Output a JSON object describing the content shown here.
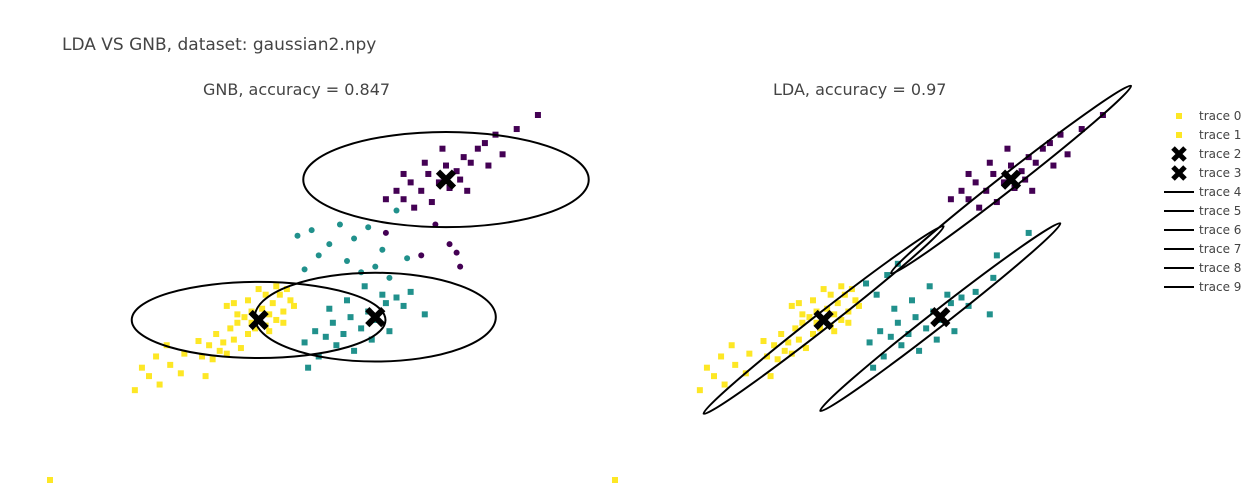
{
  "title": "LDA VS GNB, dataset: gaussian2.npy",
  "colors": {
    "class0": "#fde725",
    "class1": "#21918c",
    "class2": "#440154",
    "marker": "#000000",
    "ellipse": "#000000"
  },
  "legend": [
    {
      "label": "trace 0",
      "symbol": "square"
    },
    {
      "label": "trace 1",
      "symbol": "square"
    },
    {
      "label": "trace 2",
      "symbol": "x"
    },
    {
      "label": "trace 3",
      "symbol": "x"
    },
    {
      "label": "trace 4",
      "symbol": "line"
    },
    {
      "label": "trace 5",
      "symbol": "line"
    },
    {
      "label": "trace 6",
      "symbol": "line"
    },
    {
      "label": "trace 7",
      "symbol": "line"
    },
    {
      "label": "trace 8",
      "symbol": "line"
    },
    {
      "label": "trace 9",
      "symbol": "line"
    }
  ],
  "chart_data": [
    {
      "type": "scatter",
      "title": "GNB, accuracy = 0.847",
      "axes_visible": false,
      "grid": false,
      "xlim": [
        -4,
        10
      ],
      "ylim": [
        -4,
        9
      ],
      "series": [
        {
          "class": 0,
          "marker": "square",
          "points": [
            [
              0.2,
              0.95
            ],
            [
              0.3,
              0.4
            ],
            [
              0.5,
              0.8
            ],
            [
              0.6,
              0.3
            ],
            [
              0.7,
              1.2
            ],
            [
              0.8,
              0.6
            ],
            [
              0.9,
              0.9
            ],
            [
              1.0,
              0.5
            ],
            [
              1.1,
              1.4
            ],
            [
              1.2,
              1.0
            ],
            [
              1.3,
              1.6
            ],
            [
              1.4,
              0.7
            ],
            [
              1.5,
              1.8
            ],
            [
              1.6,
              1.2
            ],
            [
              1.7,
              2.0
            ],
            [
              1.8,
              1.4
            ],
            [
              1.9,
              1.7
            ],
            [
              2.0,
              2.1
            ],
            [
              2.1,
              1.5
            ],
            [
              2.2,
              1.9
            ],
            [
              2.3,
              2.3
            ],
            [
              2.4,
              1.7
            ],
            [
              2.5,
              2.6
            ],
            [
              2.6,
              2.0
            ],
            [
              2.7,
              2.8
            ],
            [
              2.8,
              2.4
            ],
            [
              2.9,
              2.2
            ],
            [
              1.0,
              2.2
            ],
            [
              1.3,
              1.9
            ],
            [
              1.7,
              1.6
            ],
            [
              2.1,
              2.6
            ],
            [
              2.4,
              2.9
            ],
            [
              1.2,
              2.3
            ],
            [
              1.6,
              2.4
            ],
            [
              1.9,
              2.8
            ],
            [
              2.2,
              1.3
            ],
            [
              2.6,
              1.6
            ],
            [
              -1.6,
              -0.8
            ],
            [
              -1.2,
              -0.3
            ],
            [
              -0.9,
              -0.6
            ],
            [
              -0.6,
              0.1
            ],
            [
              -0.3,
              -0.2
            ],
            [
              -1.4,
              0.0
            ],
            [
              -1.0,
              0.4
            ],
            [
              -0.2,
              0.5
            ],
            [
              0.4,
              -0.3
            ],
            [
              -0.7,
              0.8
            ]
          ]
        },
        {
          "class": 1,
          "marker": "square",
          "points": [
            [
              3.2,
              0.9
            ],
            [
              3.5,
              1.3
            ],
            [
              3.8,
              1.1
            ],
            [
              4.0,
              1.6
            ],
            [
              4.3,
              1.2
            ],
            [
              4.5,
              1.8
            ],
            [
              4.8,
              1.4
            ],
            [
              5.0,
              2.0
            ],
            [
              5.2,
              1.7
            ],
            [
              5.5,
              2.3
            ],
            [
              5.8,
              2.5
            ],
            [
              6.0,
              2.2
            ],
            [
              6.2,
              2.7
            ],
            [
              3.6,
              0.4
            ],
            [
              4.1,
              0.8
            ],
            [
              4.6,
              0.6
            ],
            [
              5.1,
              1.0
            ],
            [
              5.6,
              1.3
            ],
            [
              3.9,
              2.1
            ],
            [
              4.4,
              2.4
            ],
            [
              4.9,
              2.9
            ],
            [
              5.4,
              2.6
            ],
            [
              6.6,
              1.9
            ],
            [
              3.3,
              0.0
            ]
          ]
        },
        {
          "class": 1,
          "marker": "circle",
          "points": [
            [
              3.0,
              4.7
            ],
            [
              3.4,
              4.9
            ],
            [
              3.9,
              4.4
            ],
            [
              4.2,
              5.1
            ],
            [
              4.6,
              4.6
            ],
            [
              5.0,
              5.0
            ],
            [
              5.4,
              4.2
            ],
            [
              5.8,
              5.6
            ],
            [
              3.6,
              4.0
            ],
            [
              4.4,
              3.8
            ],
            [
              5.2,
              3.6
            ],
            [
              6.1,
              3.9
            ],
            [
              4.8,
              3.4
            ],
            [
              3.2,
              3.5
            ],
            [
              5.6,
              3.2
            ]
          ]
        },
        {
          "class": 2,
          "marker": "square",
          "points": [
            [
              5.5,
              6.0
            ],
            [
              5.8,
              6.3
            ],
            [
              6.0,
              6.0
            ],
            [
              6.2,
              6.6
            ],
            [
              6.5,
              6.3
            ],
            [
              6.7,
              6.9
            ],
            [
              7.0,
              6.6
            ],
            [
              7.2,
              7.2
            ],
            [
              7.5,
              7.0
            ],
            [
              7.7,
              7.5
            ],
            [
              7.9,
              7.3
            ],
            [
              8.1,
              7.8
            ],
            [
              8.3,
              8.0
            ],
            [
              8.6,
              8.3
            ],
            [
              6.3,
              5.7
            ],
            [
              6.8,
              5.9
            ],
            [
              7.3,
              6.4
            ],
            [
              7.6,
              6.7
            ],
            [
              7.8,
              6.3
            ],
            [
              8.4,
              7.2
            ],
            [
              8.8,
              7.6
            ],
            [
              9.2,
              8.5
            ],
            [
              9.8,
              9.0
            ],
            [
              6.6,
              7.3
            ],
            [
              7.1,
              7.8
            ],
            [
              6.0,
              6.9
            ]
          ]
        },
        {
          "class": 2,
          "marker": "circle",
          "points": [
            [
              5.5,
              4.8
            ],
            [
              6.5,
              4.0
            ],
            [
              6.9,
              5.1
            ],
            [
              7.3,
              4.4
            ],
            [
              7.6,
              3.6
            ],
            [
              7.5,
              4.1
            ]
          ]
        }
      ],
      "centers": [
        [
          1.9,
          1.7
        ],
        [
          5.2,
          1.8
        ],
        [
          7.2,
          6.7
        ]
      ],
      "ellipses": [
        {
          "center": [
            1.9,
            1.7
          ],
          "rx": 4.0,
          "ry": 1.2,
          "angle": 0
        },
        {
          "center": [
            5.2,
            1.8
          ],
          "rx": 3.8,
          "ry": 1.4,
          "angle": 0
        },
        {
          "center": [
            7.2,
            6.7
          ],
          "rx": 4.5,
          "ry": 1.5,
          "angle": 0
        }
      ]
    },
    {
      "type": "scatter",
      "title": "LDA, accuracy = 0.97",
      "axes_visible": false,
      "grid": false,
      "xlim": [
        -4,
        10
      ],
      "ylim": [
        -4,
        9
      ],
      "series": [
        {
          "class": 0,
          "marker": "square",
          "points": [
            [
              0.2,
              0.95
            ],
            [
              0.3,
              0.4
            ],
            [
              0.5,
              0.8
            ],
            [
              0.6,
              0.3
            ],
            [
              0.7,
              1.2
            ],
            [
              0.8,
              0.6
            ],
            [
              0.9,
              0.9
            ],
            [
              1.0,
              0.5
            ],
            [
              1.1,
              1.4
            ],
            [
              1.2,
              1.0
            ],
            [
              1.3,
              1.6
            ],
            [
              1.4,
              0.7
            ],
            [
              1.5,
              1.8
            ],
            [
              1.6,
              1.2
            ],
            [
              1.7,
              2.0
            ],
            [
              1.8,
              1.4
            ],
            [
              1.9,
              1.7
            ],
            [
              2.0,
              2.1
            ],
            [
              2.1,
              1.5
            ],
            [
              2.2,
              1.9
            ],
            [
              2.3,
              2.3
            ],
            [
              2.4,
              1.7
            ],
            [
              2.5,
              2.6
            ],
            [
              2.6,
              2.0
            ],
            [
              2.7,
              2.8
            ],
            [
              2.8,
              2.4
            ],
            [
              2.9,
              2.2
            ],
            [
              1.0,
              2.2
            ],
            [
              1.3,
              1.9
            ],
            [
              1.7,
              1.6
            ],
            [
              2.1,
              2.6
            ],
            [
              2.4,
              2.9
            ],
            [
              1.2,
              2.3
            ],
            [
              1.6,
              2.4
            ],
            [
              1.9,
              2.8
            ],
            [
              2.2,
              1.3
            ],
            [
              2.6,
              1.6
            ],
            [
              -1.6,
              -0.8
            ],
            [
              -1.2,
              -0.3
            ],
            [
              -0.9,
              -0.6
            ],
            [
              -0.6,
              0.1
            ],
            [
              -0.3,
              -0.2
            ],
            [
              -1.4,
              0.0
            ],
            [
              -1.0,
              0.4
            ],
            [
              -0.2,
              0.5
            ],
            [
              0.4,
              -0.3
            ],
            [
              -0.7,
              0.8
            ]
          ]
        },
        {
          "class": 1,
          "marker": "square",
          "points": [
            [
              3.2,
              0.9
            ],
            [
              3.5,
              1.3
            ],
            [
              3.8,
              1.1
            ],
            [
              4.0,
              1.6
            ],
            [
              4.3,
              1.2
            ],
            [
              4.5,
              1.8
            ],
            [
              4.8,
              1.4
            ],
            [
              5.0,
              2.0
            ],
            [
              5.2,
              1.7
            ],
            [
              5.5,
              2.3
            ],
            [
              5.8,
              2.5
            ],
            [
              6.0,
              2.2
            ],
            [
              6.2,
              2.7
            ],
            [
              3.6,
              0.4
            ],
            [
              4.1,
              0.8
            ],
            [
              4.6,
              0.6
            ],
            [
              5.1,
              1.0
            ],
            [
              5.6,
              1.3
            ],
            [
              3.9,
              2.1
            ],
            [
              4.4,
              2.4
            ],
            [
              4.9,
              2.9
            ],
            [
              5.4,
              2.6
            ],
            [
              6.6,
              1.9
            ],
            [
              3.3,
              0.0
            ],
            [
              4.0,
              3.7
            ],
            [
              3.1,
              3.0
            ],
            [
              3.7,
              3.3
            ],
            [
              3.4,
              2.6
            ],
            [
              6.8,
              4.0
            ],
            [
              7.7,
              4.8
            ],
            [
              6.7,
              3.2
            ]
          ]
        },
        {
          "class": 2,
          "marker": "square",
          "points": [
            [
              5.5,
              6.0
            ],
            [
              5.8,
              6.3
            ],
            [
              6.0,
              6.0
            ],
            [
              6.2,
              6.6
            ],
            [
              6.5,
              6.3
            ],
            [
              6.7,
              6.9
            ],
            [
              7.0,
              6.6
            ],
            [
              7.2,
              7.2
            ],
            [
              7.5,
              7.0
            ],
            [
              7.7,
              7.5
            ],
            [
              7.9,
              7.3
            ],
            [
              8.1,
              7.8
            ],
            [
              8.3,
              8.0
            ],
            [
              8.6,
              8.3
            ],
            [
              6.3,
              5.7
            ],
            [
              6.8,
              5.9
            ],
            [
              7.3,
              6.4
            ],
            [
              7.6,
              6.7
            ],
            [
              7.8,
              6.3
            ],
            [
              8.4,
              7.2
            ],
            [
              8.8,
              7.6
            ],
            [
              9.2,
              8.5
            ],
            [
              9.8,
              9.0
            ],
            [
              6.6,
              7.3
            ],
            [
              7.1,
              7.8
            ],
            [
              6.0,
              6.9
            ]
          ]
        }
      ],
      "centers": [
        [
          1.9,
          1.7
        ],
        [
          5.2,
          1.8
        ],
        [
          7.2,
          6.7
        ]
      ],
      "ellipses": [
        {
          "center": [
            1.9,
            1.7
          ],
          "rx": 4.8,
          "ry": 0.25,
          "angle": 38
        },
        {
          "center": [
            5.2,
            1.8
          ],
          "rx": 4.8,
          "ry": 0.25,
          "angle": 38
        },
        {
          "center": [
            7.2,
            6.7
          ],
          "rx": 4.8,
          "ry": 0.25,
          "angle": 38
        }
      ]
    }
  ],
  "outliers": [
    [
      -4.0,
      -4.0
    ]
  ]
}
